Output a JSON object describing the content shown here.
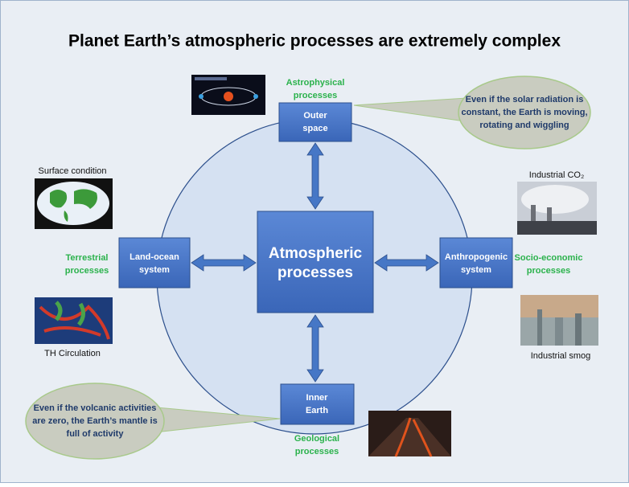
{
  "title": "Planet Earth’s atmospheric processes are extremely complex",
  "center": {
    "lines": [
      "Atmospheric",
      "processes"
    ]
  },
  "nodes": [
    {
      "lines": [
        "Outer",
        "space"
      ],
      "process": [
        "Astrophysical",
        "processes"
      ]
    },
    {
      "lines": [
        "Land-ocean",
        "system"
      ],
      "process": [
        "Terrestrial",
        "processes"
      ]
    },
    {
      "lines": [
        "Anthropogenic",
        "system"
      ],
      "process": [
        "Socio-economic",
        "processes"
      ]
    },
    {
      "lines": [
        "Inner",
        "Earth"
      ],
      "process": [
        "Geological",
        "processes"
      ]
    }
  ],
  "callouts": [
    {
      "lines": [
        "Even if the solar radiation is",
        "constant, the Earth is moving,",
        "rotating and wiggling"
      ]
    },
    {
      "lines": [
        "Even if the volcanic activities",
        "are zero, the Earth’s mantle is",
        "full of activity"
      ]
    }
  ],
  "images": [
    {
      "caption": "Surface condition"
    },
    {
      "caption": "Industrial CO₂"
    },
    {
      "caption": "TH Circulation"
    },
    {
      "caption": "Industrial smog"
    }
  ]
}
